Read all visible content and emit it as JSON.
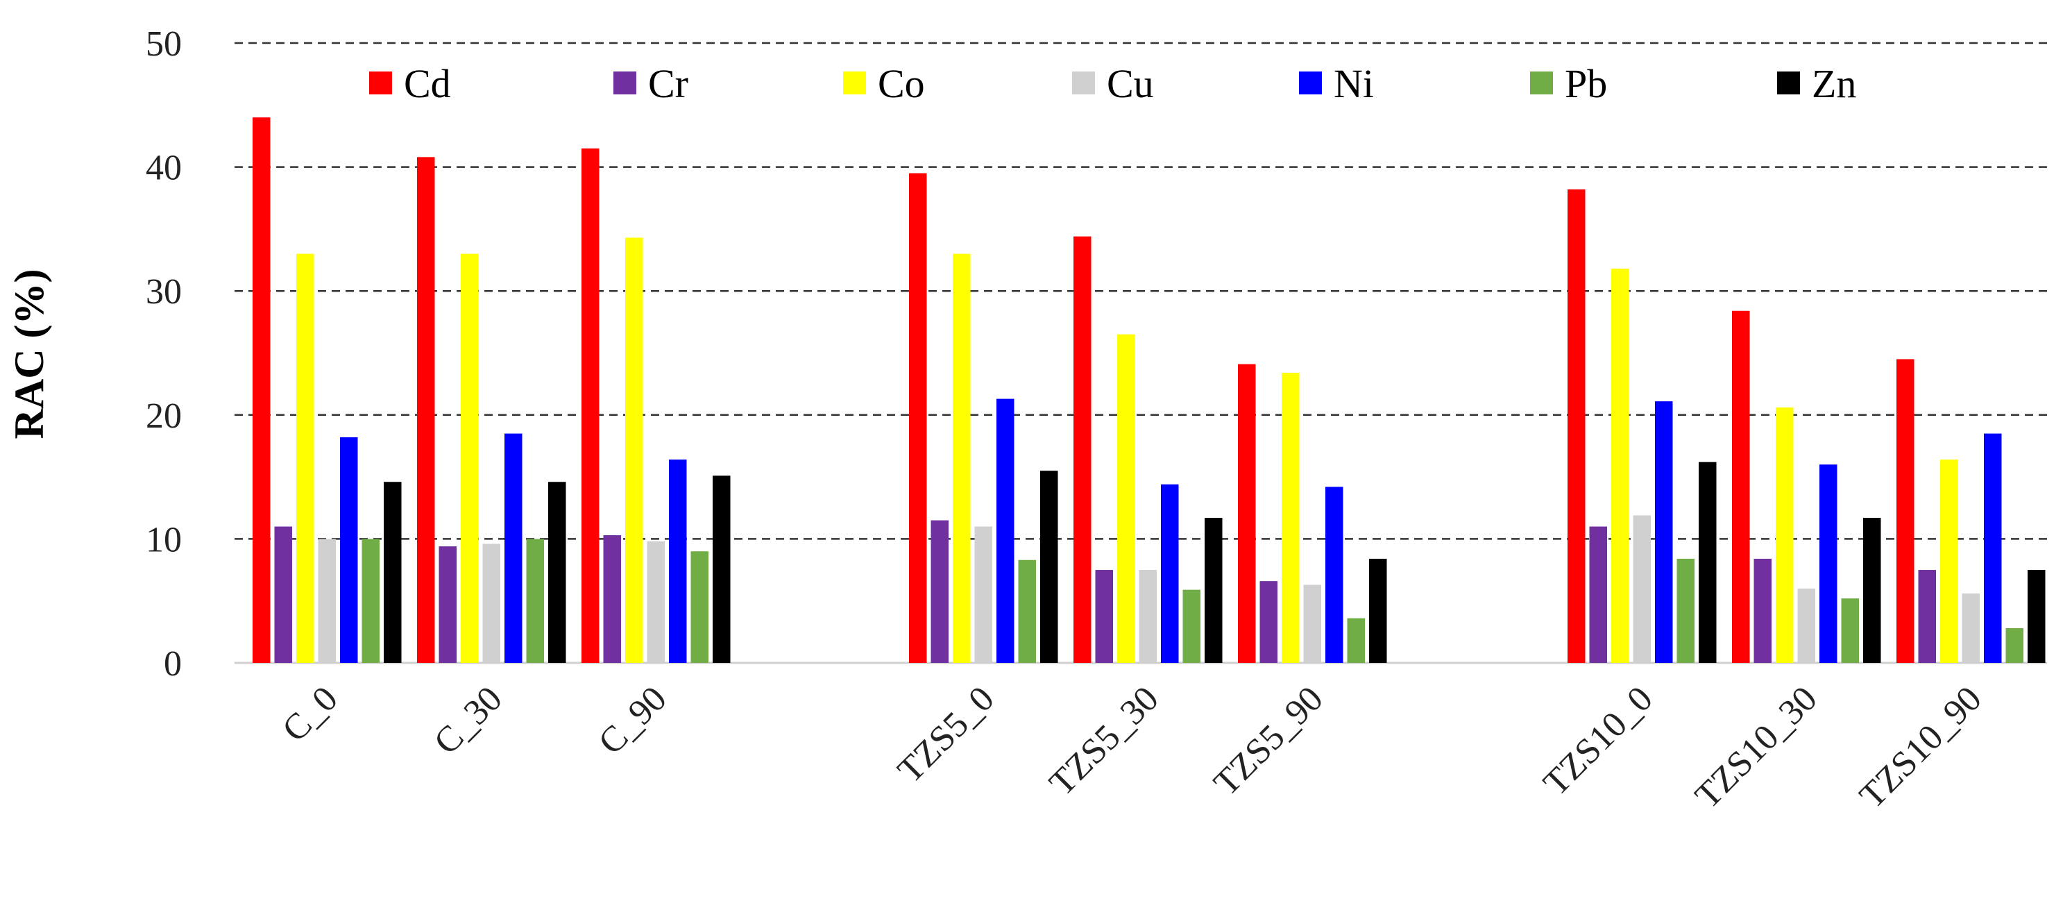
{
  "chart_data": {
    "type": "bar",
    "title": "",
    "xlabel": "",
    "ylabel": "RAC (%)",
    "ylim": [
      0,
      50
    ],
    "yticks": [
      "0",
      "10",
      "20",
      "30",
      "40",
      "50"
    ],
    "grid": true,
    "legend_position": "top",
    "categories": [
      "C_0",
      "C_30",
      "C_90",
      "TZS5_0",
      "TZS5_30",
      "TZS5_90",
      "TZS10_0",
      "TZS10_30",
      "TZS10_90"
    ],
    "series": [
      {
        "name": "Cd",
        "color": "#ff0000",
        "values": [
          44.0,
          40.8,
          41.5,
          39.5,
          34.4,
          24.1,
          38.2,
          28.4,
          24.5
        ]
      },
      {
        "name": "Cr",
        "color": "#7030a0",
        "values": [
          11.0,
          9.4,
          10.3,
          11.5,
          7.5,
          6.6,
          11.0,
          8.4,
          7.5
        ]
      },
      {
        "name": "Co",
        "color": "#ffff00",
        "values": [
          33.0,
          33.0,
          34.3,
          33.0,
          26.5,
          23.4,
          31.8,
          20.6,
          16.4
        ]
      },
      {
        "name": "Cu",
        "color": "#d0d0d0",
        "values": [
          10.0,
          9.6,
          9.8,
          11.0,
          7.5,
          6.3,
          11.9,
          6.0,
          5.6
        ]
      },
      {
        "name": "Ni",
        "color": "#0000ff",
        "values": [
          18.2,
          18.5,
          16.4,
          21.3,
          14.4,
          14.2,
          21.1,
          16.0,
          18.5
        ]
      },
      {
        "name": "Pb",
        "color": "#70ad47",
        "values": [
          10.0,
          10.0,
          9.0,
          8.3,
          5.9,
          3.6,
          8.4,
          5.2,
          2.8
        ]
      },
      {
        "name": "Zn",
        "color": "#000000",
        "values": [
          14.6,
          14.6,
          15.1,
          15.5,
          11.7,
          8.4,
          16.2,
          11.7,
          7.5
        ]
      }
    ]
  }
}
